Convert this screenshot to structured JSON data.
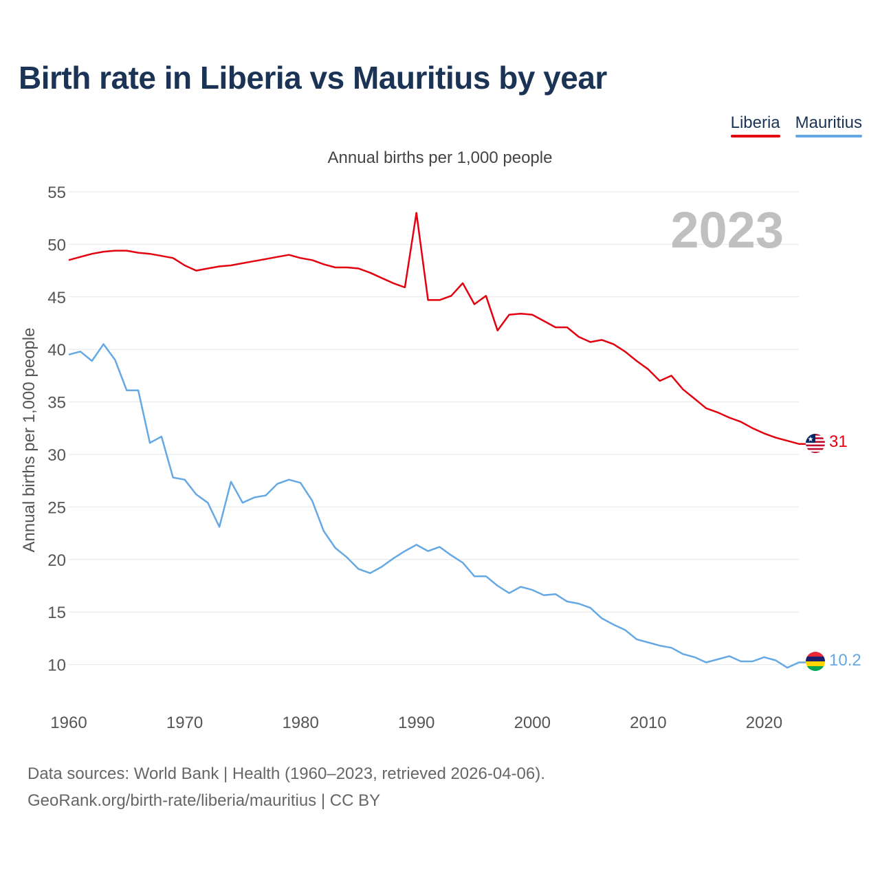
{
  "title": "Birth rate in Liberia vs Mauritius by year",
  "chart_data": {
    "type": "line",
    "subtitle": "Annual births per 1,000 people",
    "ylabel": "Annual births per 1,000 people",
    "xlabel": "",
    "year_label": "2023",
    "xlim": [
      1960,
      2023
    ],
    "ylim": [
      5,
      55
    ],
    "yticks": [
      10,
      15,
      20,
      25,
      30,
      35,
      40,
      45,
      50,
      55
    ],
    "xticks": [
      1960,
      1970,
      1980,
      1990,
      2000,
      2010,
      2020
    ],
    "x": [
      1960,
      1961,
      1962,
      1963,
      1964,
      1965,
      1966,
      1967,
      1968,
      1969,
      1970,
      1971,
      1972,
      1973,
      1974,
      1975,
      1976,
      1977,
      1978,
      1979,
      1980,
      1981,
      1982,
      1983,
      1984,
      1985,
      1986,
      1987,
      1988,
      1989,
      1990,
      1991,
      1992,
      1993,
      1994,
      1995,
      1996,
      1997,
      1998,
      1999,
      2000,
      2001,
      2002,
      2003,
      2004,
      2005,
      2006,
      2007,
      2008,
      2009,
      2010,
      2011,
      2012,
      2013,
      2014,
      2015,
      2016,
      2017,
      2018,
      2019,
      2020,
      2021,
      2022,
      2023
    ],
    "series": [
      {
        "name": "Liberia",
        "color": "#e3000f",
        "end_label": "31",
        "values": [
          48.5,
          48.8,
          49.1,
          49.3,
          49.4,
          49.4,
          49.2,
          49.1,
          48.9,
          48.7,
          48.0,
          47.5,
          47.7,
          47.9,
          48.0,
          48.2,
          48.4,
          48.6,
          48.8,
          49.0,
          48.7,
          48.5,
          48.1,
          47.8,
          47.8,
          47.7,
          47.3,
          46.8,
          46.3,
          45.9,
          53.0,
          44.7,
          44.7,
          45.1,
          46.3,
          44.3,
          45.1,
          41.8,
          43.3,
          43.4,
          43.3,
          42.7,
          42.1,
          42.1,
          41.2,
          40.7,
          40.9,
          40.5,
          39.8,
          38.9,
          38.1,
          37.0,
          37.5,
          36.2,
          35.3,
          34.4,
          34.0,
          33.5,
          33.1,
          32.5,
          32.0,
          31.6,
          31.3,
          31.0
        ]
      },
      {
        "name": "Mauritius",
        "color": "#64a8e4",
        "end_label": "10.2",
        "values": [
          39.5,
          39.8,
          38.9,
          40.5,
          39.0,
          36.1,
          36.1,
          31.1,
          31.7,
          27.8,
          27.6,
          26.2,
          25.4,
          23.1,
          27.4,
          25.4,
          25.9,
          26.1,
          27.2,
          27.6,
          27.3,
          25.6,
          22.7,
          21.1,
          20.2,
          19.1,
          18.7,
          19.3,
          20.1,
          20.8,
          21.4,
          20.8,
          21.2,
          20.4,
          19.7,
          18.4,
          18.4,
          17.5,
          16.8,
          17.4,
          17.1,
          16.6,
          16.7,
          16.0,
          15.8,
          15.4,
          14.4,
          13.8,
          13.3,
          12.4,
          12.1,
          11.8,
          11.6,
          11.0,
          10.7,
          10.2,
          10.5,
          10.8,
          10.3,
          10.3,
          10.7,
          10.4,
          9.7,
          10.2
        ]
      }
    ]
  },
  "footer": {
    "line1": "Data sources: World Bank | Health (1960–2023, retrieved 2026-04-06).",
    "line2": "GeoRank.org/birth-rate/liberia/mauritius | CC BY"
  }
}
